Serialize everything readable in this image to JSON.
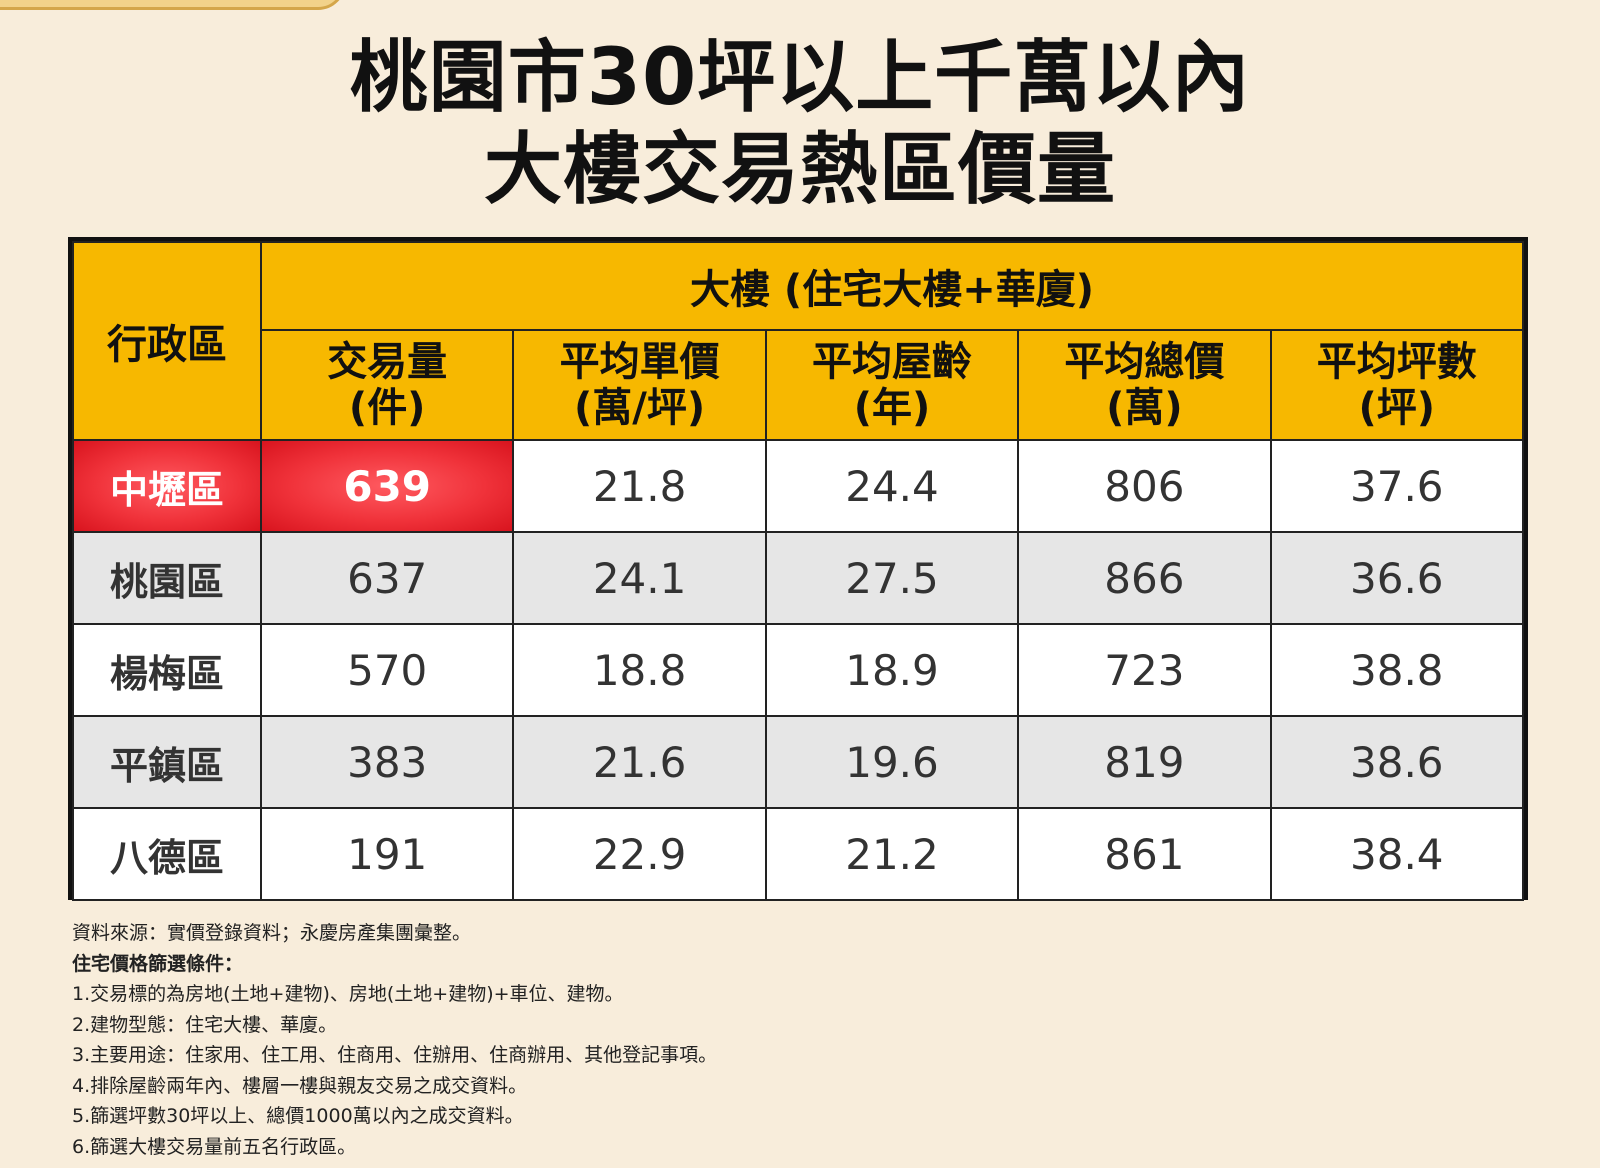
{
  "title_line1": "桃園市30坪以上千萬以內",
  "title_line2": "大樓交易熱區價量",
  "table": {
    "district_header": "行政區",
    "group_header": "大樓 (住宅大樓+華廈)",
    "columns": [
      {
        "name": "交易量",
        "unit": "(件)"
      },
      {
        "name": "平均單價",
        "unit": "(萬/坪)"
      },
      {
        "name": "平均屋齡",
        "unit": "(年)"
      },
      {
        "name": "平均總價",
        "unit": "(萬)"
      },
      {
        "name": "平均坪數",
        "unit": "(坪)"
      }
    ],
    "rows": [
      {
        "district": "中壢區",
        "cells": [
          "639",
          "21.8",
          "24.4",
          "806",
          "37.6"
        ]
      },
      {
        "district": "桃園區",
        "cells": [
          "637",
          "24.1",
          "27.5",
          "866",
          "36.6"
        ]
      },
      {
        "district": "楊梅區",
        "cells": [
          "570",
          "18.8",
          "18.9",
          "723",
          "38.8"
        ]
      },
      {
        "district": "平鎮區",
        "cells": [
          "383",
          "21.6",
          "19.6",
          "819",
          "38.6"
        ]
      },
      {
        "district": "八德區",
        "cells": [
          "191",
          "22.9",
          "21.2",
          "861",
          "38.4"
        ]
      }
    ],
    "highlight_color": "#f0323a",
    "header_color": "#f7b800"
  },
  "notes": {
    "source": "資料來源：實價登錄資料；永慶房產集團彙整。",
    "criteria_title": "住宅價格篩選條件：",
    "items": [
      "1.交易標的為房地(土地+建物)、房地(土地+建物)+車位、建物。",
      "2.建物型態：住宅大樓、華廈。",
      "3.主要用途：住家用、住工用、住商用、住辦用、住商辦用、其他登記事項。",
      "4.排除屋齡兩年內、樓層一樓與親友交易之成交資料。",
      "5.篩選坪數30坪以上、總價1000萬以內之成交資料。",
      "6.篩選大樓交易量前五名行政區。"
    ]
  }
}
